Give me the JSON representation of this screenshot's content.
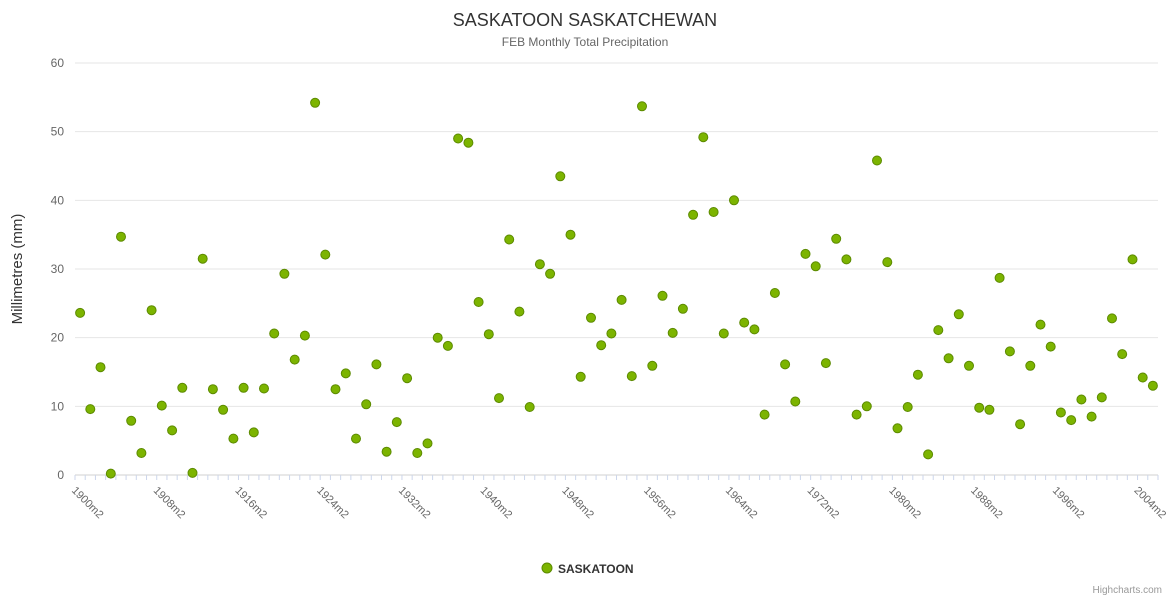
{
  "chart_data": {
    "type": "scatter",
    "title": "SASKATOON SASKATCHEWAN",
    "subtitle": "FEB Monthly Total Precipitation",
    "xlabel": "",
    "ylabel": "Millimetres (mm)",
    "ylim": [
      0,
      60
    ],
    "ytick_interval": 10,
    "yticks": [
      0,
      10,
      20,
      30,
      40,
      50,
      60
    ],
    "grid": true,
    "legend_position": "bottom-center",
    "x_label_every": 8,
    "x_tick_labels": [
      "1900m2",
      "1908m2",
      "1916m2",
      "1924m2",
      "1932m2",
      "1940m2",
      "1948m2",
      "1956m2",
      "1964m2",
      "1972m2",
      "1980m2",
      "1988m2",
      "1996m2",
      "2004m2"
    ],
    "marker_color": "#7cb400",
    "marker_stroke": "#5c8a00",
    "categories": [
      "1900m2",
      "1901m2",
      "1902m2",
      "1903m2",
      "1904m2",
      "1905m2",
      "1906m2",
      "1907m2",
      "1908m2",
      "1909m2",
      "1910m2",
      "1911m2",
      "1912m2",
      "1913m2",
      "1914m2",
      "1915m2",
      "1916m2",
      "1917m2",
      "1918m2",
      "1919m2",
      "1920m2",
      "1921m2",
      "1922m2",
      "1923m2",
      "1924m2",
      "1925m2",
      "1926m2",
      "1927m2",
      "1928m2",
      "1929m2",
      "1930m2",
      "1931m2",
      "1932m2",
      "1933m2",
      "1934m2",
      "1935m2",
      "1936m2",
      "1937m2",
      "1938m2",
      "1939m2",
      "1940m2",
      "1941m2",
      "1942m2",
      "1943m2",
      "1944m2",
      "1945m2",
      "1946m2",
      "1947m2",
      "1948m2",
      "1949m2",
      "1950m2",
      "1951m2",
      "1952m2",
      "1953m2",
      "1954m2",
      "1955m2",
      "1956m2",
      "1957m2",
      "1958m2",
      "1959m2",
      "1960m2",
      "1961m2",
      "1962m2",
      "1963m2",
      "1964m2",
      "1965m2",
      "1966m2",
      "1967m2",
      "1968m2",
      "1969m2",
      "1970m2",
      "1971m2",
      "1972m2",
      "1973m2",
      "1974m2",
      "1975m2",
      "1976m2",
      "1977m2",
      "1978m2",
      "1979m2",
      "1980m2",
      "1981m2",
      "1982m2",
      "1983m2",
      "1984m2",
      "1985m2",
      "1986m2",
      "1987m2",
      "1988m2",
      "1989m2",
      "1990m2",
      "1991m2",
      "1992m2",
      "1993m2",
      "1994m2",
      "1995m2",
      "1996m2",
      "1997m2",
      "1998m2",
      "1999m2",
      "2000m2",
      "2001m2",
      "2002m2",
      "2003m2",
      "2004m2",
      "2005m2"
    ],
    "series": [
      {
        "name": "SASKATOON",
        "values": [
          23.6,
          9.6,
          15.7,
          0.2,
          34.7,
          7.9,
          3.2,
          24.0,
          10.1,
          6.5,
          12.7,
          0.3,
          31.5,
          12.5,
          9.5,
          5.3,
          12.7,
          6.2,
          12.6,
          20.6,
          29.3,
          16.8,
          20.3,
          54.2,
          32.1,
          12.5,
          14.8,
          5.3,
          10.3,
          16.1,
          3.4,
          7.7,
          14.1,
          3.2,
          4.6,
          20.0,
          18.8,
          49.0,
          48.4,
          25.2,
          20.5,
          11.2,
          34.3,
          23.8,
          9.9,
          30.7,
          29.3,
          43.5,
          35.0,
          14.3,
          22.9,
          18.9,
          20.6,
          25.5,
          14.4,
          53.7,
          15.9,
          26.1,
          20.7,
          24.2,
          37.9,
          49.2,
          38.3,
          20.6,
          40.0,
          22.2,
          21.2,
          8.8,
          26.5,
          16.1,
          10.7,
          32.2,
          30.4,
          16.3,
          34.4,
          31.4,
          8.8,
          10.0,
          45.8,
          31.0,
          6.8,
          9.9,
          14.6,
          3.0,
          21.1,
          17.0,
          23.4,
          15.9,
          9.8,
          9.5,
          28.7,
          18.0,
          7.4,
          15.9,
          21.9,
          18.7,
          9.1,
          8.0,
          11.0,
          8.5,
          11.3,
          22.8,
          17.6,
          31.4,
          14.2,
          13.0
        ]
      }
    ],
    "legend": {
      "label": "SASKATOON"
    }
  },
  "credits": "Highcharts.com"
}
